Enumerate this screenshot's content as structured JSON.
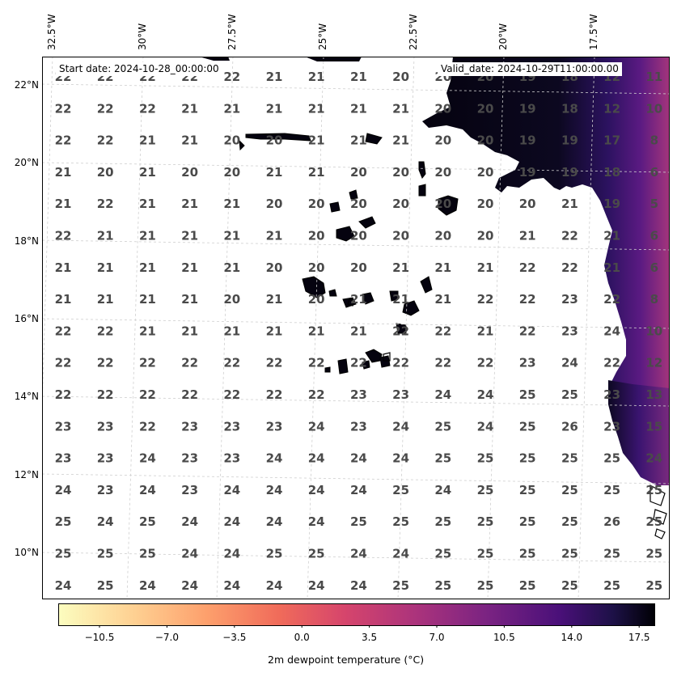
{
  "header": {
    "start_date": "Start date: 2024-10-28_00:00:00",
    "valid_date": "Valid_date: 2024-10-29T11:00:00.00"
  },
  "axes": {
    "lon_labels": [
      "32.5°W",
      "30°W",
      "27.5°W",
      "25°W",
      "22.5°W",
      "20°W",
      "17.5°W"
    ],
    "lat_labels": [
      "22°N",
      "20°N",
      "18°N",
      "16°N",
      "14°N",
      "12°N",
      "10°N"
    ]
  },
  "grid_values": [
    [
      22,
      22,
      22,
      22,
      22,
      21,
      21,
      21,
      20,
      20,
      20,
      19,
      18,
      12,
      11
    ],
    [
      22,
      22,
      22,
      21,
      21,
      21,
      21,
      21,
      21,
      20,
      20,
      19,
      18,
      12,
      10
    ],
    [
      22,
      22,
      21,
      21,
      20,
      20,
      21,
      21,
      21,
      20,
      20,
      19,
      19,
      17,
      8
    ],
    [
      21,
      20,
      21,
      20,
      20,
      21,
      21,
      20,
      20,
      20,
      20,
      19,
      19,
      18,
      6
    ],
    [
      21,
      22,
      21,
      21,
      21,
      20,
      20,
      20,
      20,
      20,
      20,
      20,
      21,
      19,
      5
    ],
    [
      22,
      21,
      21,
      21,
      21,
      21,
      20,
      20,
      20,
      20,
      20,
      21,
      22,
      21,
      6
    ],
    [
      21,
      21,
      21,
      21,
      21,
      20,
      20,
      20,
      21,
      21,
      21,
      22,
      22,
      21,
      6
    ],
    [
      21,
      21,
      21,
      21,
      20,
      21,
      20,
      21,
      21,
      21,
      22,
      22,
      23,
      22,
      8
    ],
    [
      22,
      22,
      21,
      21,
      21,
      21,
      21,
      21,
      22,
      22,
      21,
      22,
      23,
      24,
      10
    ],
    [
      22,
      22,
      22,
      22,
      22,
      22,
      22,
      22,
      22,
      22,
      22,
      23,
      24,
      22,
      12
    ],
    [
      22,
      22,
      22,
      22,
      22,
      22,
      22,
      23,
      23,
      24,
      24,
      25,
      25,
      23,
      13
    ],
    [
      23,
      23,
      22,
      23,
      23,
      23,
      24,
      23,
      24,
      25,
      24,
      25,
      26,
      23,
      15
    ],
    [
      23,
      23,
      24,
      23,
      23,
      24,
      24,
      24,
      24,
      25,
      25,
      25,
      25,
      25,
      24
    ],
    [
      24,
      23,
      24,
      23,
      24,
      24,
      24,
      24,
      25,
      24,
      25,
      25,
      25,
      25,
      25
    ],
    [
      25,
      24,
      25,
      24,
      24,
      24,
      24,
      25,
      25,
      25,
      25,
      25,
      25,
      26,
      25
    ],
    [
      25,
      25,
      25,
      24,
      24,
      25,
      25,
      24,
      24,
      25,
      25,
      25,
      25,
      25,
      25
    ],
    [
      24,
      25,
      24,
      24,
      24,
      24,
      24,
      24,
      25,
      25,
      25,
      25,
      25,
      25,
      25
    ]
  ],
  "colorbar": {
    "ticks": [
      "−10.5",
      "−7.0",
      "−3.5",
      "0.0",
      "3.5",
      "7.0",
      "10.5",
      "14.0",
      "17.5"
    ],
    "min": -12.0,
    "max": 19.5,
    "label": "2m dewpoint temperature ($^\\circ$C)",
    "label_display": "2m dewpoint temperature (°C)",
    "colormap": "magma_r"
  },
  "colors": {
    "grid_text": "#4a4a4a",
    "land_dark": "#05030f",
    "ocean": "#ffffff"
  }
}
